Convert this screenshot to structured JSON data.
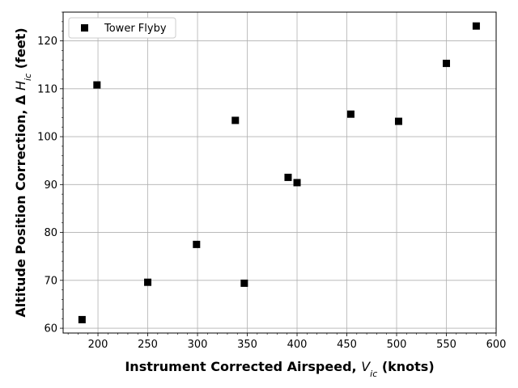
{
  "chart_data": {
    "type": "scatter",
    "title": "",
    "xlabel_parts": [
      "Instrument Corrected Airspeed, ",
      "V",
      "ic",
      " (knots)"
    ],
    "ylabel_parts": [
      "Altitude Position Correction, Δ ",
      "H",
      "ic",
      " (feet)"
    ],
    "xlim": [
      165,
      600
    ],
    "ylim": [
      59,
      126
    ],
    "xticks": [
      200,
      250,
      300,
      350,
      400,
      450,
      500,
      550,
      600
    ],
    "yticks": [
      60,
      70,
      80,
      90,
      100,
      110,
      120
    ],
    "x_minor_step": 10,
    "y_minor_step": 2,
    "grid": true,
    "legend_position": "upper-left",
    "series": [
      {
        "name": "Tower Flyby",
        "marker": "square",
        "color": "#000000",
        "x": [
          184,
          199,
          250,
          299,
          338,
          347,
          391,
          400,
          454,
          502,
          550,
          580
        ],
        "y": [
          61.8,
          110.8,
          69.6,
          77.5,
          103.4,
          69.4,
          91.5,
          90.4,
          104.7,
          103.2,
          115.3,
          123.1
        ]
      }
    ]
  }
}
